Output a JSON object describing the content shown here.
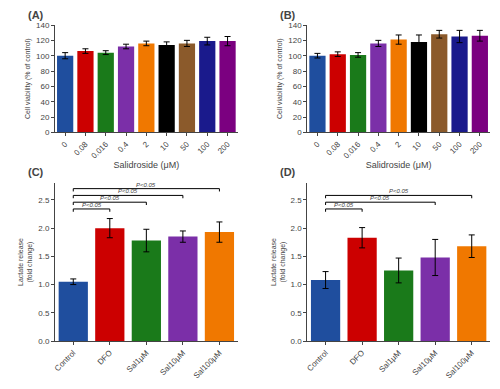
{
  "chart_data": [
    {
      "type": "bar",
      "title": "(A)",
      "categories": [
        "0",
        "0.08",
        "0.016",
        "0.4",
        "2",
        "10",
        "50",
        "100",
        "200"
      ],
      "values": [
        100,
        106,
        104,
        112,
        116,
        114,
        116,
        119,
        119
      ],
      "errors": [
        4,
        3,
        2.5,
        3,
        3,
        4,
        4,
        5,
        6
      ],
      "colors": [
        "#1f4e9e",
        "#cc0000",
        "#1a7a1a",
        "#7b2fa8",
        "#f07800",
        "#000000",
        "#8b5a2b",
        "#1a1a8c",
        "#7b0080"
      ],
      "xlabel": "Salidroside (μM)",
      "ylabel": "Cell viability (% of control)",
      "ylim": [
        0,
        140
      ],
      "yticks": [
        0,
        20,
        40,
        60,
        80,
        100,
        120,
        140
      ],
      "grid": false
    },
    {
      "type": "bar",
      "title": "(B)",
      "categories": [
        "0",
        "0.08",
        "0.016",
        "0.4",
        "2",
        "10",
        "50",
        "100",
        "200"
      ],
      "values": [
        100,
        102,
        101,
        116,
        121,
        118,
        128,
        125,
        126
      ],
      "errors": [
        3,
        3,
        3,
        4,
        6,
        9,
        5,
        8,
        7
      ],
      "colors": [
        "#1f4e9e",
        "#cc0000",
        "#1a7a1a",
        "#7b2fa8",
        "#f07800",
        "#000000",
        "#8b5a2b",
        "#1a1a8c",
        "#7b0080"
      ],
      "xlabel": "Salidroside (μM)",
      "ylabel": "Cell viability (% of control)",
      "ylim": [
        0,
        140
      ],
      "yticks": [
        0,
        20,
        40,
        60,
        80,
        100,
        120,
        140
      ],
      "grid": false
    },
    {
      "type": "bar",
      "title": "(C)",
      "categories": [
        "Control",
        "DFO",
        "Sal1μM",
        "Sal10μM",
        "Sal100μM"
      ],
      "values": [
        1.05,
        2.0,
        1.78,
        1.85,
        1.93
      ],
      "errors": [
        0.05,
        0.17,
        0.2,
        0.1,
        0.18
      ],
      "colors": [
        "#1f4e9e",
        "#cc0000",
        "#1a7a1a",
        "#7b2fa8",
        "#f07800"
      ],
      "ylabel": "Lactate release\n(fold change)",
      "ylim": [
        0,
        2.8
      ],
      "yticks": [
        {
          "value": 0.0,
          "label": "0.0"
        },
        0.5,
        {
          "value": 1.0,
          "label": "1.0"
        },
        1.5,
        {
          "value": 2.0,
          "label": "2.0"
        },
        2.5
      ],
      "grid": false,
      "brackets": [
        {
          "from": "Control",
          "to": "DFO",
          "y": 2.34,
          "text": "P<0.05"
        },
        {
          "from": "Control",
          "to": "Sal1μM",
          "y": 2.46,
          "text": "P<0.05"
        },
        {
          "from": "Control",
          "to": "Sal10μM",
          "y": 2.58,
          "text": "P<0.05"
        },
        {
          "from": "Control",
          "to": "Sal100μM",
          "y": 2.7,
          "text": "P<0.05"
        }
      ]
    },
    {
      "type": "bar",
      "title": "(D)",
      "categories": [
        "Control",
        "DFO",
        "Sal1μM",
        "Sal10μM",
        "Sal100μM"
      ],
      "values": [
        1.08,
        1.83,
        1.25,
        1.48,
        1.68
      ],
      "errors": [
        0.15,
        0.18,
        0.22,
        0.32,
        0.2
      ],
      "colors": [
        "#1f4e9e",
        "#cc0000",
        "#1a7a1a",
        "#7b2fa8",
        "#f07800"
      ],
      "ylabel": "Lactate release\n(fold change)",
      "ylim": [
        0,
        2.8
      ],
      "yticks": [
        {
          "value": 0.0,
          "label": "0.0"
        },
        0.5,
        {
          "value": 1.0,
          "label": "1.0"
        },
        1.5,
        {
          "value": 2.0,
          "label": "2.0"
        },
        2.5
      ],
      "grid": false,
      "brackets": [
        {
          "from": "Control",
          "to": "DFO",
          "y": 2.34,
          "text": "P<0.05"
        },
        {
          "from": "Control",
          "to": "Sal10μM",
          "y": 2.46,
          "text": "P<0.05"
        },
        {
          "from": "Control",
          "to": "Sal100μM",
          "y": 2.58,
          "text": "P<0.05"
        }
      ]
    }
  ]
}
